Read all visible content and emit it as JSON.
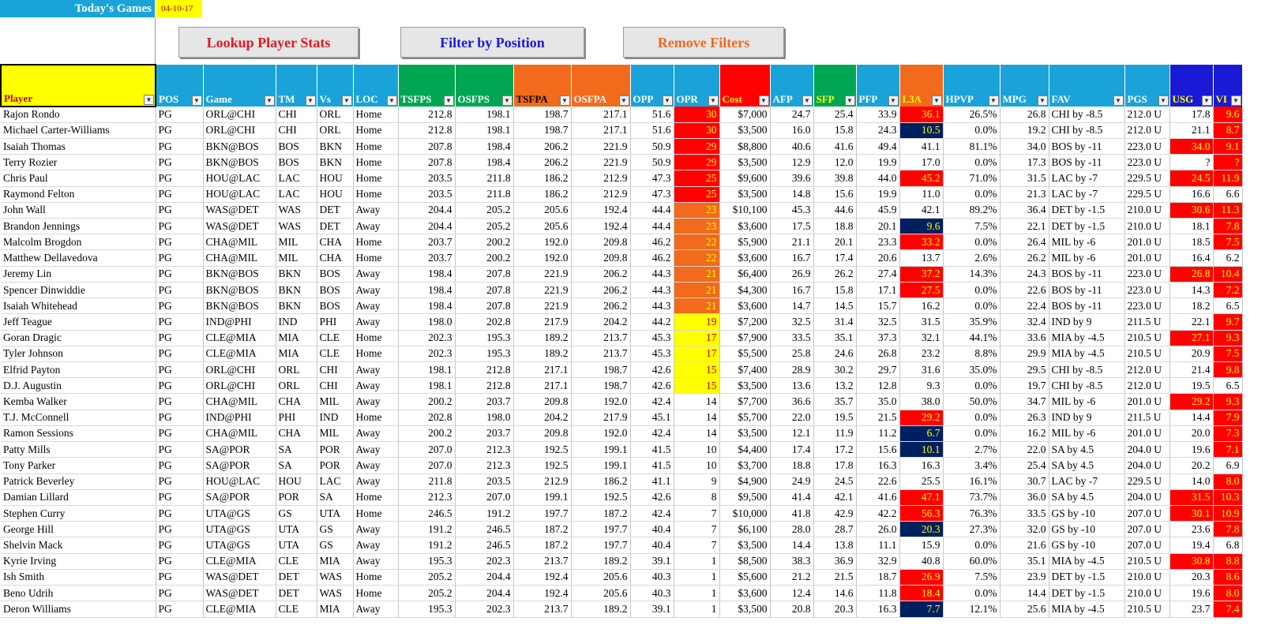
{
  "header": {
    "title": "Today's Games",
    "date": "04-10-17"
  },
  "buttons": {
    "lookup": "Lookup Player Stats",
    "filter": "Filter by Position",
    "remove": "Remove Filters"
  },
  "colors": {
    "title_bg": "#1aa3d9",
    "hot_red": "#ff0000",
    "cold_navy": "#001f5f",
    "warm_orange": "#f26a1b",
    "mild_yellow": "#ffff00"
  },
  "columns": [
    {
      "label": "Player",
      "bg": "#ffff00",
      "color": "#c00000",
      "width": 196
    },
    {
      "label": "POS",
      "bg": "#1aa3d9",
      "color": "#ffffff",
      "width": 60
    },
    {
      "label": "Game",
      "bg": "#1aa3d9",
      "color": "#ffffff",
      "width": 92
    },
    {
      "label": "TM",
      "bg": "#1aa3d9",
      "color": "#ffffff",
      "width": 52
    },
    {
      "label": "Vs",
      "bg": "#1aa3d9",
      "color": "#ffffff",
      "width": 46
    },
    {
      "label": "LOC",
      "bg": "#1aa3d9",
      "color": "#ffffff",
      "width": 57
    },
    {
      "label": "TSFPS",
      "bg": "#00a651",
      "color": "#ffffff",
      "width": 72
    },
    {
      "label": "OSFPS",
      "bg": "#00a651",
      "color": "#ffffff",
      "width": 74
    },
    {
      "label": "TSFPA",
      "bg": "#f26a1b",
      "color": "#000000",
      "width": 73
    },
    {
      "label": "OSFPA",
      "bg": "#f26a1b",
      "color": "#ffffff",
      "width": 75
    },
    {
      "label": "OPP",
      "bg": "#1aa3d9",
      "color": "#ffffff",
      "width": 55
    },
    {
      "label": "OPR",
      "bg": "#1aa3d9",
      "color": "#ffffff",
      "width": 58
    },
    {
      "label": "Cost",
      "bg": "#ff0000",
      "color": "#ffff00",
      "width": 64
    },
    {
      "label": "AFP",
      "bg": "#1aa3d9",
      "color": "#ffffff",
      "width": 55
    },
    {
      "label": "SFP",
      "bg": "#00a651",
      "color": "#ffff00",
      "width": 54
    },
    {
      "label": "PFP",
      "bg": "#1aa3d9",
      "color": "#ffffff",
      "width": 55
    },
    {
      "label": "L3A",
      "bg": "#f26a1b",
      "color": "#ffff00",
      "width": 55
    },
    {
      "label": "HPVP",
      "bg": "#1aa3d9",
      "color": "#ffffff",
      "width": 72
    },
    {
      "label": "MPG",
      "bg": "#1aa3d9",
      "color": "#ffffff",
      "width": 62
    },
    {
      "label": "FAV",
      "bg": "#1aa3d9",
      "color": "#ffffff",
      "width": 96
    },
    {
      "label": "PGS",
      "bg": "#1aa3d9",
      "color": "#ffffff",
      "width": 57
    },
    {
      "label": "USG",
      "bg": "#1a1ad6",
      "color": "#ffff00",
      "width": 55
    },
    {
      "label": "VI",
      "bg": "#1a1ad6",
      "color": "#ffff00",
      "width": 37
    }
  ],
  "rows": [
    [
      "Rajon Rondo",
      "PG",
      "ORL@CHI",
      "CHI",
      "ORL",
      "Home",
      "212.8",
      "198.1",
      "198.7",
      "217.1",
      "51.6",
      "30",
      "$7,000",
      "24.7",
      "25.4",
      "33.9",
      "36.1",
      "26.5%",
      "26.8",
      "CHI by -8.5",
      "212.0 U",
      "17.8",
      "9.6"
    ],
    [
      "Michael Carter-Williams",
      "PG",
      "ORL@CHI",
      "CHI",
      "ORL",
      "Home",
      "212.8",
      "198.1",
      "198.7",
      "217.1",
      "51.6",
      "30",
      "$3,500",
      "16.0",
      "15.8",
      "24.3",
      "10.5",
      "0.0%",
      "19.2",
      "CHI by -8.5",
      "212.0 U",
      "21.1",
      "8.7"
    ],
    [
      "Isaiah Thomas",
      "PG",
      "BKN@BOS",
      "BOS",
      "BKN",
      "Home",
      "207.8",
      "198.4",
      "206.2",
      "221.9",
      "50.9",
      "29",
      "$8,800",
      "40.6",
      "41.6",
      "49.4",
      "41.1",
      "81.1%",
      "34.0",
      "BOS by -11",
      "223.0 U",
      "34.0",
      "9.1"
    ],
    [
      "Terry Rozier",
      "PG",
      "BKN@BOS",
      "BOS",
      "BKN",
      "Home",
      "207.8",
      "198.4",
      "206.2",
      "221.9",
      "50.9",
      "29",
      "$3,500",
      "12.9",
      "12.0",
      "19.9",
      "17.0",
      "0.0%",
      "17.3",
      "BOS by -11",
      "223.0 U",
      "?",
      "?"
    ],
    [
      "Chris Paul",
      "PG",
      "HOU@LAC",
      "LAC",
      "HOU",
      "Home",
      "203.5",
      "211.8",
      "186.2",
      "212.9",
      "47.3",
      "25",
      "$9,600",
      "39.6",
      "39.8",
      "44.0",
      "45.2",
      "71.0%",
      "31.5",
      "LAC by -7",
      "229.5 U",
      "24.5",
      "11.9"
    ],
    [
      "Raymond Felton",
      "PG",
      "HOU@LAC",
      "LAC",
      "HOU",
      "Home",
      "203.5",
      "211.8",
      "186.2",
      "212.9",
      "47.3",
      "25",
      "$3,500",
      "14.8",
      "15.6",
      "19.9",
      "11.0",
      "0.0%",
      "21.3",
      "LAC by -7",
      "229.5 U",
      "16.6",
      "6.6"
    ],
    [
      "John Wall",
      "PG",
      "WAS@DET",
      "WAS",
      "DET",
      "Away",
      "204.4",
      "205.2",
      "205.6",
      "192.4",
      "44.4",
      "23",
      "$10,100",
      "45.3",
      "44.6",
      "45.9",
      "42.1",
      "89.2%",
      "36.4",
      "DET by -1.5",
      "210.0 U",
      "30.6",
      "11.3"
    ],
    [
      "Brandon Jennings",
      "PG",
      "WAS@DET",
      "WAS",
      "DET",
      "Away",
      "204.4",
      "205.2",
      "205.6",
      "192.4",
      "44.4",
      "23",
      "$3,600",
      "17.5",
      "18.8",
      "20.1",
      "9.6",
      "7.5%",
      "22.1",
      "DET by -1.5",
      "210.0 U",
      "18.1",
      "7.8"
    ],
    [
      "Malcolm Brogdon",
      "PG",
      "CHA@MIL",
      "MIL",
      "CHA",
      "Home",
      "203.7",
      "200.2",
      "192.0",
      "209.8",
      "46.2",
      "22",
      "$5,900",
      "21.1",
      "20.1",
      "23.3",
      "33.2",
      "0.0%",
      "26.4",
      "MIL by -6",
      "201.0 U",
      "18.5",
      "7.5"
    ],
    [
      "Matthew Dellavedova",
      "PG",
      "CHA@MIL",
      "MIL",
      "CHA",
      "Home",
      "203.7",
      "200.2",
      "192.0",
      "209.8",
      "46.2",
      "22",
      "$3,600",
      "16.7",
      "17.4",
      "20.6",
      "13.7",
      "2.6%",
      "26.2",
      "MIL by -6",
      "201.0 U",
      "16.4",
      "6.2"
    ],
    [
      "Jeremy Lin",
      "PG",
      "BKN@BOS",
      "BKN",
      "BOS",
      "Away",
      "198.4",
      "207.8",
      "221.9",
      "206.2",
      "44.3",
      "21",
      "$6,400",
      "26.9",
      "26.2",
      "27.4",
      "37.2",
      "14.3%",
      "24.3",
      "BOS by -11",
      "223.0 U",
      "26.8",
      "10.4"
    ],
    [
      "Spencer Dinwiddie",
      "PG",
      "BKN@BOS",
      "BKN",
      "BOS",
      "Away",
      "198.4",
      "207.8",
      "221.9",
      "206.2",
      "44.3",
      "21",
      "$4,300",
      "16.7",
      "15.8",
      "17.1",
      "27.5",
      "0.0%",
      "22.6",
      "BOS by -11",
      "223.0 U",
      "14.3",
      "7.2"
    ],
    [
      "Isaiah Whitehead",
      "PG",
      "BKN@BOS",
      "BKN",
      "BOS",
      "Away",
      "198.4",
      "207.8",
      "221.9",
      "206.2",
      "44.3",
      "21",
      "$3,600",
      "14.7",
      "14.5",
      "15.7",
      "16.2",
      "0.0%",
      "22.4",
      "BOS by -11",
      "223.0 U",
      "18.2",
      "6.5"
    ],
    [
      "Jeff Teague",
      "PG",
      "IND@PHI",
      "IND",
      "PHI",
      "Away",
      "198.0",
      "202.8",
      "217.9",
      "204.2",
      "44.2",
      "19",
      "$7,200",
      "32.5",
      "31.4",
      "32.5",
      "31.5",
      "35.9%",
      "32.4",
      "IND by 9",
      "211.5 U",
      "22.1",
      "9.7"
    ],
    [
      "Goran Dragic",
      "PG",
      "CLE@MIA",
      "MIA",
      "CLE",
      "Home",
      "202.3",
      "195.3",
      "189.2",
      "213.7",
      "45.3",
      "17",
      "$7,900",
      "33.5",
      "35.1",
      "37.3",
      "32.1",
      "44.1%",
      "33.6",
      "MIA by -4.5",
      "210.5 U",
      "27.1",
      "9.3"
    ],
    [
      "Tyler Johnson",
      "PG",
      "CLE@MIA",
      "MIA",
      "CLE",
      "Home",
      "202.3",
      "195.3",
      "189.2",
      "213.7",
      "45.3",
      "17",
      "$5,500",
      "25.8",
      "24.6",
      "26.8",
      "23.2",
      "8.8%",
      "29.9",
      "MIA by -4.5",
      "210.5 U",
      "20.9",
      "7.5"
    ],
    [
      "Elfrid Payton",
      "PG",
      "ORL@CHI",
      "ORL",
      "CHI",
      "Away",
      "198.1",
      "212.8",
      "217.1",
      "198.7",
      "42.6",
      "15",
      "$7,400",
      "28.9",
      "30.2",
      "29.7",
      "31.6",
      "35.0%",
      "29.5",
      "CHI by -8.5",
      "212.0 U",
      "21.4",
      "9.8"
    ],
    [
      "D.J. Augustin",
      "PG",
      "ORL@CHI",
      "ORL",
      "CHI",
      "Away",
      "198.1",
      "212.8",
      "217.1",
      "198.7",
      "42.6",
      "15",
      "$3,500",
      "13.6",
      "13.2",
      "12.8",
      "9.3",
      "0.0%",
      "19.7",
      "CHI by -8.5",
      "212.0 U",
      "19.5",
      "6.5"
    ],
    [
      "Kemba Walker",
      "PG",
      "CHA@MIL",
      "CHA",
      "MIL",
      "Away",
      "200.2",
      "203.7",
      "209.8",
      "192.0",
      "42.4",
      "14",
      "$7,700",
      "36.6",
      "35.7",
      "35.0",
      "38.0",
      "50.0%",
      "34.7",
      "MIL by -6",
      "201.0 U",
      "29.2",
      "9.3"
    ],
    [
      "T.J. McConnell",
      "PG",
      "IND@PHI",
      "PHI",
      "IND",
      "Home",
      "202.8",
      "198.0",
      "204.2",
      "217.9",
      "45.1",
      "14",
      "$5,700",
      "22.0",
      "19.5",
      "21.5",
      "29.2",
      "0.0%",
      "26.3",
      "IND by 9",
      "211.5 U",
      "14.4",
      "7.9"
    ],
    [
      "Ramon Sessions",
      "PG",
      "CHA@MIL",
      "CHA",
      "MIL",
      "Away",
      "200.2",
      "203.7",
      "209.8",
      "192.0",
      "42.4",
      "14",
      "$3,500",
      "12.1",
      "11.9",
      "11.2",
      "6.7",
      "0.0%",
      "16.2",
      "MIL by -6",
      "201.0 U",
      "20.0",
      "7.3"
    ],
    [
      "Patty Mills",
      "PG",
      "SA@POR",
      "SA",
      "POR",
      "Away",
      "207.0",
      "212.3",
      "192.5",
      "199.1",
      "41.5",
      "10",
      "$4,400",
      "17.4",
      "17.2",
      "15.6",
      "10.1",
      "2.7%",
      "22.0",
      "SA by 4.5",
      "204.0 U",
      "19.6",
      "7.1"
    ],
    [
      "Tony Parker",
      "PG",
      "SA@POR",
      "SA",
      "POR",
      "Away",
      "207.0",
      "212.3",
      "192.5",
      "199.1",
      "41.5",
      "10",
      "$3,700",
      "18.8",
      "17.8",
      "16.3",
      "16.3",
      "3.4%",
      "25.4",
      "SA by 4.5",
      "204.0 U",
      "20.2",
      "6.9"
    ],
    [
      "Patrick Beverley",
      "PG",
      "HOU@LAC",
      "HOU",
      "LAC",
      "Away",
      "211.8",
      "203.5",
      "212.9",
      "186.2",
      "41.1",
      "9",
      "$4,900",
      "24.9",
      "24.5",
      "22.6",
      "25.5",
      "16.1%",
      "30.7",
      "LAC by -7",
      "229.5 U",
      "14.0",
      "8.0"
    ],
    [
      "Damian Lillard",
      "PG",
      "SA@POR",
      "POR",
      "SA",
      "Home",
      "212.3",
      "207.0",
      "199.1",
      "192.5",
      "42.6",
      "8",
      "$9,500",
      "41.4",
      "42.1",
      "41.6",
      "47.1",
      "73.7%",
      "36.0",
      "SA by 4.5",
      "204.0 U",
      "31.5",
      "10.3"
    ],
    [
      "Stephen Curry",
      "PG",
      "UTA@GS",
      "GS",
      "UTA",
      "Home",
      "246.5",
      "191.2",
      "197.7",
      "187.2",
      "42.4",
      "7",
      "$10,000",
      "41.8",
      "42.9",
      "42.2",
      "56.3",
      "76.3%",
      "33.5",
      "GS by -10",
      "207.0 U",
      "30.1",
      "10.9"
    ],
    [
      "George Hill",
      "PG",
      "UTA@GS",
      "UTA",
      "GS",
      "Away",
      "191.2",
      "246.5",
      "187.2",
      "197.7",
      "40.4",
      "7",
      "$6,100",
      "28.0",
      "28.7",
      "26.0",
      "20.3",
      "27.3%",
      "32.0",
      "GS by -10",
      "207.0 U",
      "23.6",
      "7.8"
    ],
    [
      "Shelvin Mack",
      "PG",
      "UTA@GS",
      "UTA",
      "GS",
      "Away",
      "191.2",
      "246.5",
      "187.2",
      "197.7",
      "40.4",
      "7",
      "$3,500",
      "14.4",
      "13.8",
      "11.1",
      "15.9",
      "0.0%",
      "21.6",
      "GS by -10",
      "207.0 U",
      "19.4",
      "6.8"
    ],
    [
      "Kyrie Irving",
      "PG",
      "CLE@MIA",
      "CLE",
      "MIA",
      "Away",
      "195.3",
      "202.3",
      "213.7",
      "189.2",
      "39.1",
      "1",
      "$8,500",
      "38.3",
      "36.9",
      "32.9",
      "40.8",
      "60.0%",
      "35.1",
      "MIA by -4.5",
      "210.5 U",
      "30.8",
      "8.8"
    ],
    [
      "Ish Smith",
      "PG",
      "WAS@DET",
      "DET",
      "WAS",
      "Home",
      "205.2",
      "204.4",
      "192.4",
      "205.6",
      "40.3",
      "1",
      "$5,600",
      "21.2",
      "21.5",
      "18.7",
      "26.9",
      "7.5%",
      "23.9",
      "DET by -1.5",
      "210.0 U",
      "20.3",
      "8.6"
    ],
    [
      "Beno Udrih",
      "PG",
      "WAS@DET",
      "DET",
      "WAS",
      "Home",
      "205.2",
      "204.4",
      "192.4",
      "205.6",
      "40.3",
      "1",
      "$3,600",
      "12.4",
      "14.6",
      "11.8",
      "18.4",
      "0.0%",
      "14.4",
      "DET by -1.5",
      "210.0 U",
      "19.6",
      "8.0"
    ],
    [
      "Deron Williams",
      "PG",
      "CLE@MIA",
      "CLE",
      "MIA",
      "Away",
      "195.3",
      "202.3",
      "213.7",
      "189.2",
      "39.1",
      "1",
      "$3,500",
      "20.8",
      "20.3",
      "16.3",
      "7.7",
      "12.1%",
      "25.6",
      "MIA by -4.5",
      "210.5 U",
      "23.7",
      "7.4"
    ]
  ],
  "highlights": {
    "opr": [
      "red",
      "red",
      "red",
      "red",
      "red",
      "red",
      "orange",
      "orange",
      "orange",
      "orange",
      "orange",
      "orange",
      "orange",
      "yellow",
      "yellow",
      "yellow",
      "yellow",
      "yellow",
      "",
      "",
      "",
      "",
      "",
      "",
      "",
      "",
      "",
      "",
      "",
      "",
      "",
      ""
    ],
    "l3a": [
      "red",
      "navy",
      "",
      "",
      "red",
      "",
      "",
      "navy",
      "red",
      "",
      "red",
      "red",
      "",
      "",
      "",
      "",
      "",
      "",
      "",
      "red",
      "navy",
      "navy",
      "",
      "",
      "red",
      "red",
      "navy",
      "",
      "",
      "red",
      "red",
      "navy"
    ],
    "usg": [
      "",
      "",
      "red",
      "",
      "red",
      "",
      "red",
      "",
      "",
      "",
      "red",
      "",
      "",
      "",
      "red",
      "",
      "",
      "",
      "red",
      "",
      "",
      "",
      "",
      "",
      "red",
      "red",
      "",
      "",
      "red",
      "",
      ""
    ],
    "vi": [
      "red",
      "red",
      "red",
      "red",
      "red",
      "",
      "red",
      "red",
      "red",
      "",
      "red",
      "red",
      "",
      "red",
      "red",
      "red",
      "red",
      "",
      "red",
      "red",
      "red",
      "red",
      "",
      "red",
      "red",
      "red",
      "red",
      "",
      "red",
      "red",
      "red",
      "red"
    ]
  }
}
